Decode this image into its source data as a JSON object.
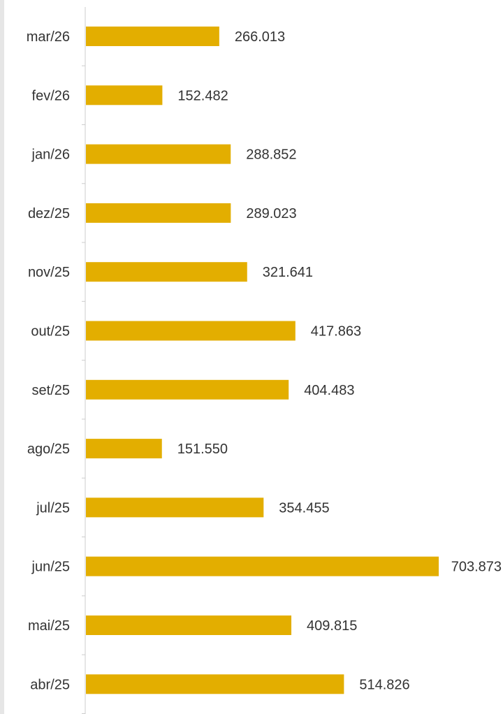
{
  "chart_data": {
    "type": "bar",
    "orientation": "horizontal",
    "categories": [
      "mar/26",
      "fev/26",
      "jan/26",
      "dez/25",
      "nov/25",
      "out/25",
      "set/25",
      "ago/25",
      "jul/25",
      "jun/25",
      "mai/25",
      "abr/25"
    ],
    "values": [
      266013,
      152482,
      288852,
      289023,
      321641,
      417863,
      404483,
      151550,
      354455,
      703873,
      409815,
      514826
    ],
    "value_labels": [
      "266.013",
      "152.482",
      "288.852",
      "289.023",
      "321.641",
      "417.863",
      "404.483",
      "151.550",
      "354.455",
      "703.873",
      "409.815",
      "514.826"
    ],
    "bar_color": "#E3AE00",
    "axis_color": "#cccccc",
    "label_color": "#333333",
    "xlim": [
      0,
      703873
    ],
    "grid": false,
    "legend": "none"
  }
}
